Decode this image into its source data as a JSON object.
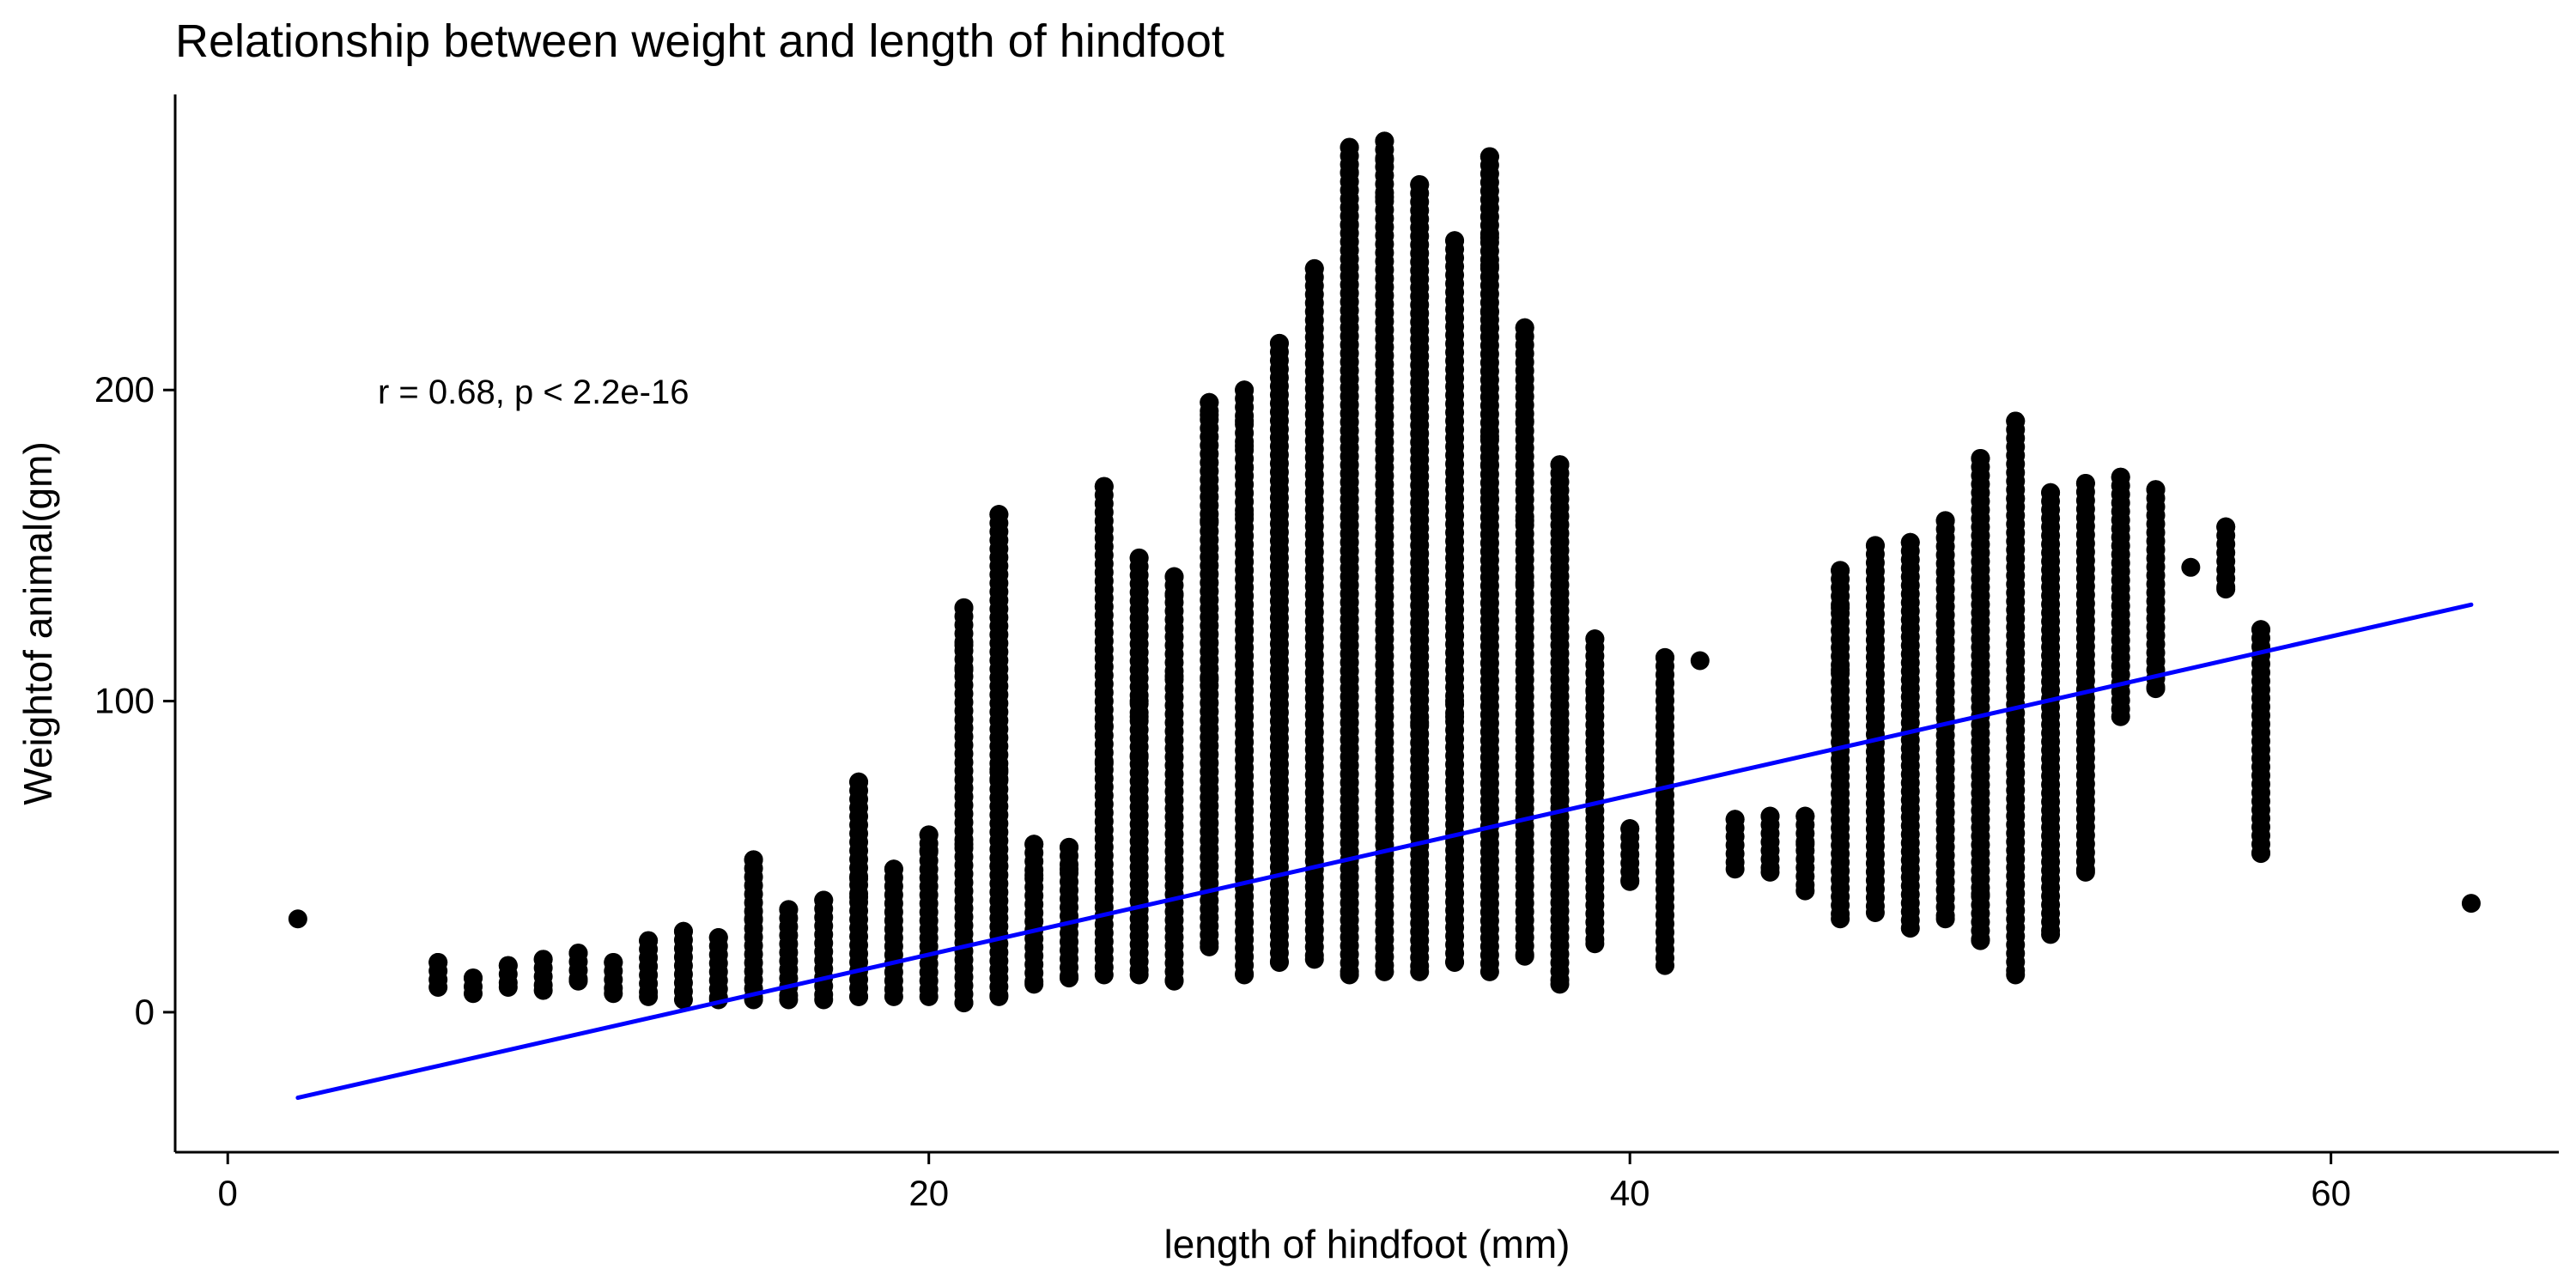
{
  "chart_data": {
    "type": "scatter",
    "title": "Relationship between weight and length of hindfoot",
    "xlabel": "length of hindfoot (mm)",
    "ylabel": "Weightof animal(gm)",
    "annotation": "r = 0.68, p < 2.2e-16",
    "xlim": [
      -1.5,
      66.5
    ],
    "ylim": [
      -45,
      295
    ],
    "x_ticks": [
      0,
      20,
      40,
      60
    ],
    "y_ticks": [
      0,
      100,
      200
    ],
    "grid": false,
    "legend": "none",
    "point_color": "#000000",
    "trendline": {
      "color": "#0000ff",
      "x": [
        2,
        64
      ],
      "y": [
        -27.5,
        131
      ]
    },
    "series": [
      {
        "values_by_x": [
          {
            "x": 2,
            "y": [
              30
            ]
          },
          {
            "x": 6,
            "y": [
              8,
              16
            ]
          },
          {
            "x": 7,
            "y": [
              6,
              11
            ]
          },
          {
            "x": 8,
            "y": [
              8,
              15
            ]
          },
          {
            "x": 9,
            "y": [
              7,
              17
            ]
          },
          {
            "x": 10,
            "y": [
              10,
              19
            ]
          },
          {
            "x": 11,
            "y": [
              6,
              16
            ]
          },
          {
            "x": 12,
            "y": [
              5,
              23
            ]
          },
          {
            "x": 13,
            "y": [
              4,
              26
            ]
          },
          {
            "x": 14,
            "y": [
              4,
              24
            ]
          },
          {
            "x": 15,
            "y": [
              4,
              30,
              49
            ]
          },
          {
            "x": 16,
            "y": [
              4,
              33
            ]
          },
          {
            "x": 17,
            "y": [
              4,
              36
            ]
          },
          {
            "x": 18,
            "y": [
              5,
              37,
              43,
              74
            ]
          },
          {
            "x": 19,
            "y": [
              5,
              46
            ]
          },
          {
            "x": 20,
            "y": [
              5,
              52,
              57
            ]
          },
          {
            "x": 21,
            "y": [
              3,
              54,
              110,
              118,
              130
            ]
          },
          {
            "x": 22,
            "y": [
              5,
              47,
              75,
              78,
              160
            ]
          },
          {
            "x": 23,
            "y": [
              9,
              44,
              54
            ]
          },
          {
            "x": 24,
            "y": [
              11,
              46,
              53
            ]
          },
          {
            "x": 25,
            "y": [
              12,
              80,
              92,
              169
            ]
          },
          {
            "x": 26,
            "y": [
              12,
              82,
              95,
              100,
              146
            ]
          },
          {
            "x": 27,
            "y": [
              10,
              108,
              134,
              140
            ]
          },
          {
            "x": 28,
            "y": [
              21,
              107,
              158,
              192,
              196
            ]
          },
          {
            "x": 29,
            "y": [
              12,
              160,
              175,
              182,
              190,
              200
            ]
          },
          {
            "x": 30,
            "y": [
              16,
              215
            ]
          },
          {
            "x": 31,
            "y": [
              17,
              239
            ]
          },
          {
            "x": 32,
            "y": [
              12,
              253,
              270,
              278
            ]
          },
          {
            "x": 33,
            "y": [
              13,
              262,
              274,
              280
            ]
          },
          {
            "x": 34,
            "y": [
              13,
              266,
              93
            ]
          },
          {
            "x": 35,
            "y": [
              16,
              248,
              100,
              95,
              121
            ]
          },
          {
            "x": 36,
            "y": [
              13,
              249,
              240,
              275,
              225,
              220,
              165,
              176,
              185
            ]
          },
          {
            "x": 37,
            "y": [
              18,
              68,
              138,
              158,
              190,
              220
            ]
          },
          {
            "x": 38,
            "y": [
              9,
              68,
              93,
              176
            ]
          },
          {
            "x": 39,
            "y": [
              22,
              73,
              103,
              120
            ]
          },
          {
            "x": 40,
            "y": [
              42,
              59
            ]
          },
          {
            "x": 41,
            "y": [
              15,
              114
            ]
          },
          {
            "x": 42,
            "y": [
              113
            ]
          },
          {
            "x": 43,
            "y": [
              46,
              62
            ]
          },
          {
            "x": 44,
            "y": [
              45,
              63
            ]
          },
          {
            "x": 45,
            "y": [
              39,
              54,
              63
            ]
          },
          {
            "x": 46,
            "y": [
              30,
              142,
              110,
              130
            ]
          },
          {
            "x": 47,
            "y": [
              32,
              150
            ]
          },
          {
            "x": 48,
            "y": [
              27,
              151
            ]
          },
          {
            "x": 49,
            "y": [
              30,
              158
            ]
          },
          {
            "x": 50,
            "y": [
              23,
              38,
              178
            ]
          },
          {
            "x": 51,
            "y": [
              12,
              165,
              190
            ]
          },
          {
            "x": 52,
            "y": [
              25,
              167
            ]
          },
          {
            "x": 53,
            "y": [
              45,
              170
            ]
          },
          {
            "x": 54,
            "y": [
              95,
              172
            ]
          },
          {
            "x": 55,
            "y": [
              104,
              168
            ]
          },
          {
            "x": 56,
            "y": [
              143
            ]
          },
          {
            "x": 57,
            "y": [
              136,
              156
            ]
          },
          {
            "x": 58,
            "y": [
              51,
              123
            ]
          },
          {
            "x": 64,
            "y": [
              35
            ]
          }
        ]
      }
    ]
  }
}
